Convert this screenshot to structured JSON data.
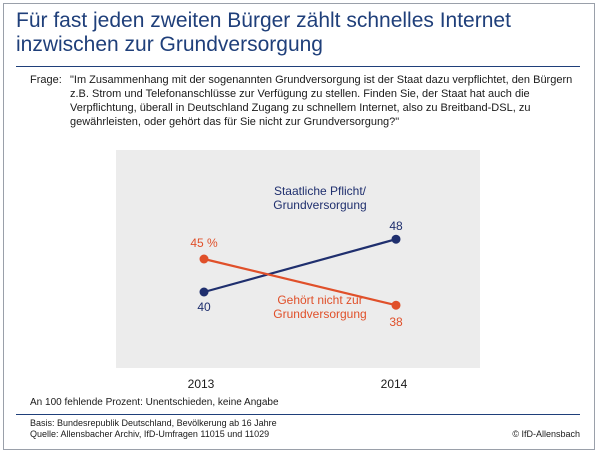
{
  "title": "Für fast jeden zweiten Bürger zählt schnelles Internet inzwischen zur Grundversorgung",
  "question": {
    "prefix": "Frage:",
    "text": "\"Im Zusammenhang mit der sogenannten Grundversorgung ist der Staat dazu verpflichtet, den Bürgern z.B. Strom und Telefonanschlüsse zur Verfügung zu stellen. Finden Sie, der Staat hat auch die Verpflichtung, überall in Deutschland Zugang zu schnellem Internet, also zu Breitband-DSL, zu gewährleisten, oder gehört das für Sie nicht zur Grundversorgung?\""
  },
  "note": "An 100 fehlende Prozent: Unentschieden, keine Angabe",
  "basis": "Basis: Bundesrepublik Deutschland, Bevölkerung ab 16 Jahre",
  "source": "Quelle: Allensbacher Archiv, IfD-Umfragen 11015 und 11029",
  "copyright": "© IfD-Allensbach",
  "colors": {
    "navy": "#1f2f6e",
    "orange": "#e0502a",
    "plot_bg": "#ececec",
    "title": "#1f3f7a"
  },
  "chart_data": {
    "type": "line",
    "x": [
      "2013",
      "2014"
    ],
    "ylim": [
      30,
      60
    ],
    "grid": false,
    "series": [
      {
        "name": "Staatliche Pflicht/ Grundversorgung",
        "name_lines": [
          "Staatliche Pflicht/",
          "Grundversorgung"
        ],
        "values": [
          40,
          48
        ],
        "labels": [
          "40",
          "48"
        ],
        "color": "#1f2f6e"
      },
      {
        "name": "Gehört nicht zur Grundversorgung",
        "name_lines": [
          "Gehört nicht zur",
          "Grundversorgung"
        ],
        "values": [
          45,
          38
        ],
        "labels": [
          "45 %",
          "38"
        ],
        "color": "#e0502a"
      }
    ]
  }
}
